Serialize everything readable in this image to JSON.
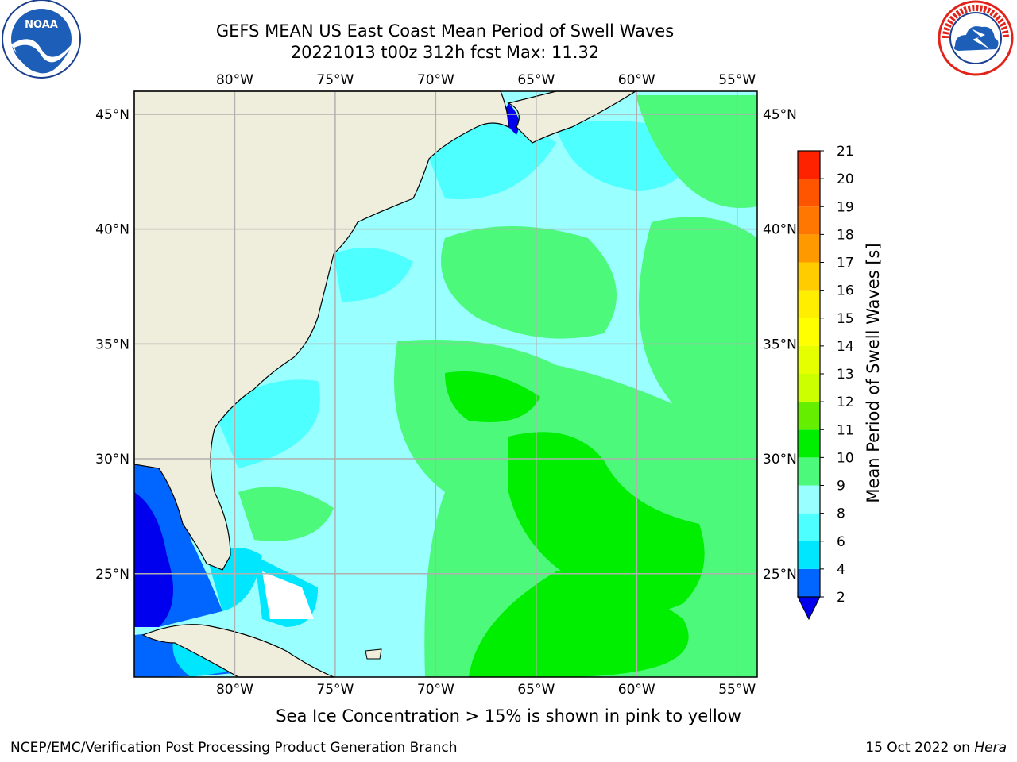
{
  "title": {
    "line1": "GEFS MEAN US East Coast Mean Period of Swell Waves",
    "line2": "20221013 t00z 312h fcst   Max: 11.32"
  },
  "logos": {
    "left": {
      "icon": "noaa-logo",
      "text": "NOAA"
    },
    "right": {
      "icon": "nws-logo",
      "ring_text": "NATIONAL WEATHER SERVICE"
    }
  },
  "map": {
    "lon_labels": [
      "80°W",
      "75°W",
      "70°W",
      "65°W",
      "60°W",
      "55°W"
    ],
    "lat_labels": [
      "45°N",
      "40°N",
      "35°N",
      "30°N",
      "25°N"
    ],
    "lon_range": [
      -85,
      -54
    ],
    "lat_range": [
      20.5,
      46
    ],
    "grid": true,
    "colors": {
      "land": "#efeedc",
      "coast": "#000000",
      "grid": "#b0b0b0",
      "no_data": "#ffffff"
    }
  },
  "colorbar": {
    "label": "Mean Period of Swell Waves [s]",
    "ticks": [
      "2",
      "4",
      "6",
      "8",
      "9",
      "10",
      "11",
      "12",
      "13",
      "14",
      "15",
      "16",
      "17",
      "18",
      "19",
      "20",
      "21"
    ],
    "colors": [
      "#0066ff",
      "#00e6ff",
      "#4dffff",
      "#99ffff",
      "#4cf97a",
      "#00ee00",
      "#66ee00",
      "#ccff00",
      "#e6ff00",
      "#ffff00",
      "#ffee00",
      "#ffcc00",
      "#ff9900",
      "#ff7700",
      "#ff5500",
      "#ff2200"
    ],
    "under_color": "#0000ee"
  },
  "subtitle": "Sea Ice Concentration > 15% is shown in pink to yellow",
  "footer": {
    "left": "NCEP/EMC/Verification Post Processing Product Generation Branch",
    "right_prefix": "15 Oct 2022 on ",
    "right_machine": "Hera"
  }
}
